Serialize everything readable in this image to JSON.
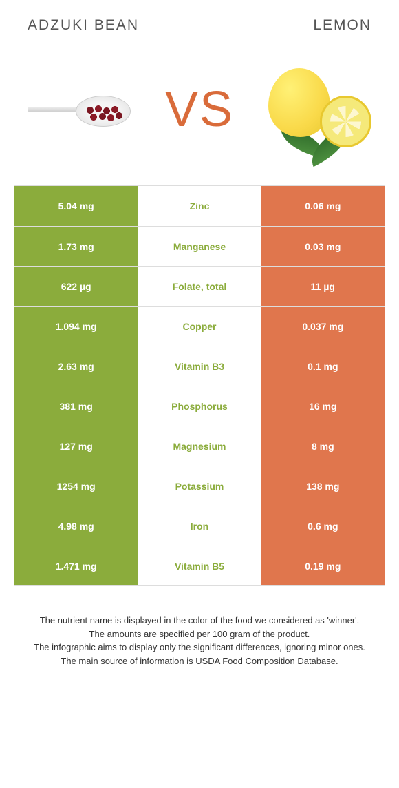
{
  "header": {
    "left": "Adzuki bean",
    "right": "Lemon",
    "vs": "VS"
  },
  "colors": {
    "left_winner": "#8bac3c",
    "right_winner": "#e0764d",
    "text_on_fill": "#ffffff",
    "border": "#dddddd",
    "background": "#ffffff"
  },
  "table": {
    "rows": [
      {
        "nutrient": "Zinc",
        "left": "5.04 mg",
        "right": "0.06 mg",
        "winner": "left"
      },
      {
        "nutrient": "Manganese",
        "left": "1.73 mg",
        "right": "0.03 mg",
        "winner": "left"
      },
      {
        "nutrient": "Folate, total",
        "left": "622 µg",
        "right": "11 µg",
        "winner": "left"
      },
      {
        "nutrient": "Copper",
        "left": "1.094 mg",
        "right": "0.037 mg",
        "winner": "left"
      },
      {
        "nutrient": "Vitamin B3",
        "left": "2.63 mg",
        "right": "0.1 mg",
        "winner": "left"
      },
      {
        "nutrient": "Phosphorus",
        "left": "381 mg",
        "right": "16 mg",
        "winner": "left"
      },
      {
        "nutrient": "Magnesium",
        "left": "127 mg",
        "right": "8 mg",
        "winner": "left"
      },
      {
        "nutrient": "Potassium",
        "left": "1254 mg",
        "right": "138 mg",
        "winner": "left"
      },
      {
        "nutrient": "Iron",
        "left": "4.98 mg",
        "right": "0.6 mg",
        "winner": "left"
      },
      {
        "nutrient": "Vitamin B5",
        "left": "1.471 mg",
        "right": "0.19 mg",
        "winner": "left"
      }
    ]
  },
  "footnotes": [
    "The nutrient name is displayed in the color of the food we considered as 'winner'.",
    "The amounts are specified per 100 gram of the product.",
    "The infographic aims to display only the significant differences, ignoring minor ones.",
    "The main source of information is USDA Food Composition Database."
  ]
}
